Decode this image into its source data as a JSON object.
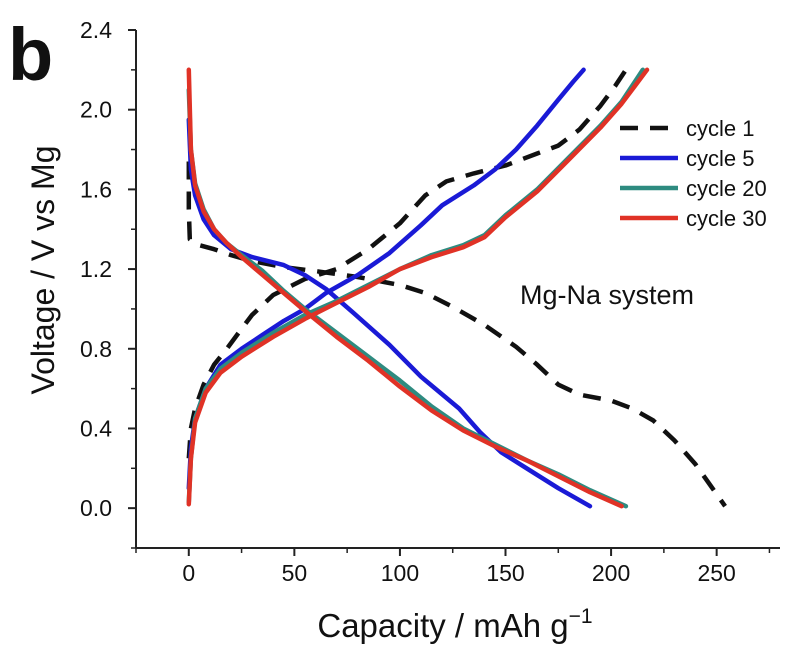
{
  "panel_label": "b",
  "annotation": "Mg-Na system",
  "chart_data": {
    "type": "line",
    "xlabel": "Capacity / mAh g",
    "xlabel_sup": "−1",
    "ylabel": "Voltage / V vs Mg",
    "xlim": [
      -25,
      280
    ],
    "ylim": [
      -0.2,
      2.4
    ],
    "x_ticks": [
      0,
      50,
      100,
      150,
      200,
      250
    ],
    "y_ticks": [
      0.0,
      0.4,
      0.8,
      1.2,
      1.6,
      2.0,
      2.4
    ],
    "x_tick_labels": [
      "0",
      "50",
      "100",
      "150",
      "200",
      "250"
    ],
    "y_tick_labels": [
      "0.0",
      "0.4",
      "0.8",
      "1.2",
      "1.6",
      "2.0",
      "2.4"
    ],
    "grid": false,
    "legend_position": "top-right",
    "series": [
      {
        "name": "cycle 1",
        "color": "#111111",
        "dash": "dashed",
        "discharge": [
          [
            0,
            1.74
          ],
          [
            0,
            1.5
          ],
          [
            0.5,
            1.35
          ],
          [
            5,
            1.32
          ],
          [
            12,
            1.3
          ],
          [
            20,
            1.27
          ],
          [
            30,
            1.24
          ],
          [
            45,
            1.21
          ],
          [
            60,
            1.19
          ],
          [
            80,
            1.16
          ],
          [
            100,
            1.12
          ],
          [
            112,
            1.08
          ],
          [
            125,
            1.01
          ],
          [
            140,
            0.92
          ],
          [
            155,
            0.81
          ],
          [
            165,
            0.72
          ],
          [
            175,
            0.62
          ],
          [
            185,
            0.57
          ],
          [
            200,
            0.54
          ],
          [
            210,
            0.5
          ],
          [
            220,
            0.44
          ],
          [
            230,
            0.34
          ],
          [
            240,
            0.22
          ],
          [
            248,
            0.1
          ],
          [
            254,
            0.01
          ]
        ],
        "charge": [
          [
            0,
            0.25
          ],
          [
            1,
            0.4
          ],
          [
            3,
            0.5
          ],
          [
            7,
            0.62
          ],
          [
            12,
            0.72
          ],
          [
            18,
            0.8
          ],
          [
            25,
            0.9
          ],
          [
            30,
            0.97
          ],
          [
            40,
            1.07
          ],
          [
            55,
            1.15
          ],
          [
            70,
            1.2
          ],
          [
            85,
            1.3
          ],
          [
            100,
            1.43
          ],
          [
            112,
            1.57
          ],
          [
            122,
            1.64
          ],
          [
            135,
            1.68
          ],
          [
            150,
            1.72
          ],
          [
            165,
            1.78
          ],
          [
            175,
            1.82
          ],
          [
            185,
            1.9
          ],
          [
            195,
            2.02
          ],
          [
            202,
            2.12
          ],
          [
            207,
            2.2
          ]
        ]
      },
      {
        "name": "cycle 5",
        "color": "#1a1ad6",
        "dash": "solid",
        "discharge": [
          [
            0,
            1.95
          ],
          [
            1,
            1.7
          ],
          [
            3,
            1.57
          ],
          [
            7,
            1.45
          ],
          [
            12,
            1.37
          ],
          [
            20,
            1.3
          ],
          [
            30,
            1.26
          ],
          [
            45,
            1.22
          ],
          [
            55,
            1.17
          ],
          [
            65,
            1.1
          ],
          [
            78,
            0.98
          ],
          [
            95,
            0.82
          ],
          [
            110,
            0.66
          ],
          [
            128,
            0.5
          ],
          [
            138,
            0.38
          ],
          [
            148,
            0.28
          ],
          [
            160,
            0.2
          ],
          [
            175,
            0.1
          ],
          [
            190,
            0.01
          ]
        ],
        "charge": [
          [
            0,
            0.1
          ],
          [
            1,
            0.3
          ],
          [
            3,
            0.45
          ],
          [
            8,
            0.6
          ],
          [
            15,
            0.72
          ],
          [
            25,
            0.8
          ],
          [
            35,
            0.87
          ],
          [
            45,
            0.94
          ],
          [
            55,
            1.0
          ],
          [
            65,
            1.08
          ],
          [
            80,
            1.17
          ],
          [
            95,
            1.28
          ],
          [
            110,
            1.42
          ],
          [
            120,
            1.52
          ],
          [
            135,
            1.62
          ],
          [
            145,
            1.7
          ],
          [
            155,
            1.8
          ],
          [
            165,
            1.92
          ],
          [
            175,
            2.05
          ],
          [
            182,
            2.14
          ],
          [
            187,
            2.2
          ]
        ]
      },
      {
        "name": "cycle 20",
        "color": "#2e8b80",
        "dash": "solid",
        "discharge": [
          [
            0,
            2.1
          ],
          [
            1,
            1.8
          ],
          [
            3,
            1.63
          ],
          [
            7,
            1.5
          ],
          [
            12,
            1.4
          ],
          [
            18,
            1.33
          ],
          [
            25,
            1.27
          ],
          [
            35,
            1.19
          ],
          [
            45,
            1.09
          ],
          [
            55,
            1.0
          ],
          [
            70,
            0.88
          ],
          [
            85,
            0.76
          ],
          [
            100,
            0.64
          ],
          [
            115,
            0.51
          ],
          [
            130,
            0.4
          ],
          [
            145,
            0.32
          ],
          [
            160,
            0.24
          ],
          [
            175,
            0.17
          ],
          [
            190,
            0.09
          ],
          [
            207,
            0.01
          ]
        ],
        "charge": [
          [
            0,
            0.03
          ],
          [
            1,
            0.25
          ],
          [
            3,
            0.45
          ],
          [
            8,
            0.6
          ],
          [
            15,
            0.7
          ],
          [
            25,
            0.78
          ],
          [
            40,
            0.88
          ],
          [
            55,
            0.97
          ],
          [
            70,
            1.04
          ],
          [
            85,
            1.12
          ],
          [
            100,
            1.2
          ],
          [
            115,
            1.27
          ],
          [
            130,
            1.32
          ],
          [
            140,
            1.37
          ],
          [
            150,
            1.47
          ],
          [
            165,
            1.6
          ],
          [
            180,
            1.76
          ],
          [
            195,
            1.92
          ],
          [
            205,
            2.04
          ],
          [
            215,
            2.2
          ]
        ]
      },
      {
        "name": "cycle 30",
        "color": "#e03226",
        "dash": "solid",
        "discharge": [
          [
            0,
            2.2
          ],
          [
            1,
            1.8
          ],
          [
            3,
            1.62
          ],
          [
            7,
            1.49
          ],
          [
            12,
            1.4
          ],
          [
            18,
            1.33
          ],
          [
            25,
            1.26
          ],
          [
            35,
            1.17
          ],
          [
            45,
            1.08
          ],
          [
            55,
            0.99
          ],
          [
            70,
            0.86
          ],
          [
            85,
            0.74
          ],
          [
            100,
            0.61
          ],
          [
            115,
            0.49
          ],
          [
            130,
            0.39
          ],
          [
            145,
            0.31
          ],
          [
            160,
            0.24
          ],
          [
            175,
            0.16
          ],
          [
            190,
            0.08
          ],
          [
            205,
            0.01
          ]
        ],
        "charge": [
          [
            0,
            0.02
          ],
          [
            1,
            0.25
          ],
          [
            3,
            0.43
          ],
          [
            8,
            0.58
          ],
          [
            15,
            0.68
          ],
          [
            25,
            0.76
          ],
          [
            40,
            0.86
          ],
          [
            55,
            0.95
          ],
          [
            70,
            1.03
          ],
          [
            85,
            1.11
          ],
          [
            100,
            1.2
          ],
          [
            115,
            1.26
          ],
          [
            130,
            1.31
          ],
          [
            140,
            1.36
          ],
          [
            150,
            1.46
          ],
          [
            165,
            1.59
          ],
          [
            180,
            1.75
          ],
          [
            195,
            1.91
          ],
          [
            205,
            2.03
          ],
          [
            217,
            2.2
          ]
        ]
      }
    ]
  }
}
